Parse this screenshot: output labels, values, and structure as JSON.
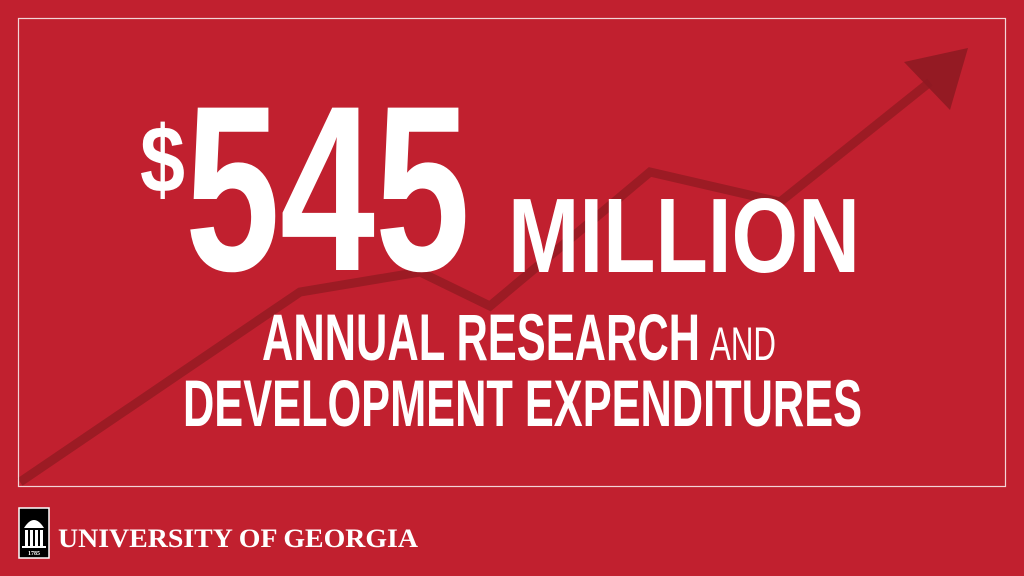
{
  "headline": {
    "currency": "$",
    "amount": "545",
    "unit": "MILLION"
  },
  "subtitle": {
    "line1": "ANNUAL RESEARCH",
    "connector": "AND",
    "line2": "DEVELOPMENT EXPENDITURES"
  },
  "footer": {
    "logo_year": "1785",
    "wordmark": "UNIVERSITY OF GEORGIA"
  }
}
